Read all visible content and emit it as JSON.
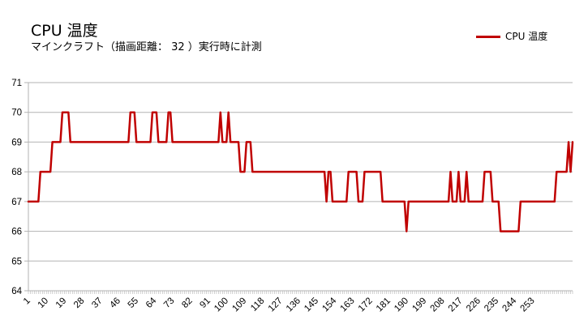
{
  "chart_data": {
    "type": "line",
    "title": "CPU 温度",
    "subtitle": "マインクラフト（描画距離： 32 ）実行時に計測",
    "xlabel": "",
    "ylabel": "",
    "ylim": [
      64,
      71
    ],
    "yticks": [
      64,
      65,
      66,
      67,
      68,
      69,
      70,
      71
    ],
    "xticks": [
      1,
      10,
      19,
      28,
      37,
      46,
      55,
      64,
      73,
      82,
      91,
      100,
      109,
      118,
      127,
      136,
      145,
      154,
      163,
      172,
      181,
      190,
      199,
      208,
      217,
      226,
      235,
      244,
      253
    ],
    "grid": true,
    "legend_position": "top-right",
    "x_start": 1,
    "series": [
      {
        "name": "CPU 温度",
        "color": "#c00000",
        "values": [
          67,
          67,
          67,
          67,
          67,
          67,
          68,
          68,
          68,
          68,
          68,
          68,
          69,
          69,
          69,
          69,
          69,
          70,
          70,
          70,
          70,
          69,
          69,
          69,
          69,
          69,
          69,
          69,
          69,
          69,
          69,
          69,
          69,
          69,
          69,
          69,
          69,
          69,
          69,
          69,
          69,
          69,
          69,
          69,
          69,
          69,
          69,
          69,
          69,
          69,
          69,
          70,
          70,
          70,
          69,
          69,
          69,
          69,
          69,
          69,
          69,
          69,
          70,
          70,
          70,
          69,
          69,
          69,
          69,
          69,
          70,
          70,
          69,
          69,
          69,
          69,
          69,
          69,
          69,
          69,
          69,
          69,
          69,
          69,
          69,
          69,
          69,
          69,
          69,
          69,
          69,
          69,
          69,
          69,
          69,
          69,
          70,
          69,
          69,
          69,
          70,
          69,
          69,
          69,
          69,
          69,
          68,
          68,
          68,
          69,
          69,
          69,
          68,
          68,
          68,
          68,
          68,
          68,
          68,
          68,
          68,
          68,
          68,
          68,
          68,
          68,
          68,
          68,
          68,
          68,
          68,
          68,
          68,
          68,
          68,
          68,
          68,
          68,
          68,
          68,
          68,
          68,
          68,
          68,
          68,
          68,
          68,
          68,
          68,
          67,
          68,
          68,
          67,
          67,
          67,
          67,
          67,
          67,
          67,
          67,
          68,
          68,
          68,
          68,
          68,
          67,
          67,
          67,
          68,
          68,
          68,
          68,
          68,
          68,
          68,
          68,
          68,
          67,
          67,
          67,
          67,
          67,
          67,
          67,
          67,
          67,
          67,
          67,
          67,
          66,
          67,
          67,
          67,
          67,
          67,
          67,
          67,
          67,
          67,
          67,
          67,
          67,
          67,
          67,
          67,
          67,
          67,
          67,
          67,
          67,
          67,
          68,
          67,
          67,
          67,
          68,
          67,
          67,
          67,
          68,
          67,
          67,
          67,
          67,
          67,
          67,
          67,
          67,
          68,
          68,
          68,
          68,
          67,
          67,
          67,
          67,
          66,
          66,
          66,
          66,
          66,
          66,
          66,
          66,
          66,
          66,
          67,
          67,
          67,
          67,
          67,
          67,
          67,
          67,
          67,
          67,
          67,
          67,
          67,
          67,
          67,
          67,
          67,
          67,
          68,
          68,
          68,
          68,
          68,
          68,
          69,
          68,
          69
        ]
      }
    ]
  }
}
